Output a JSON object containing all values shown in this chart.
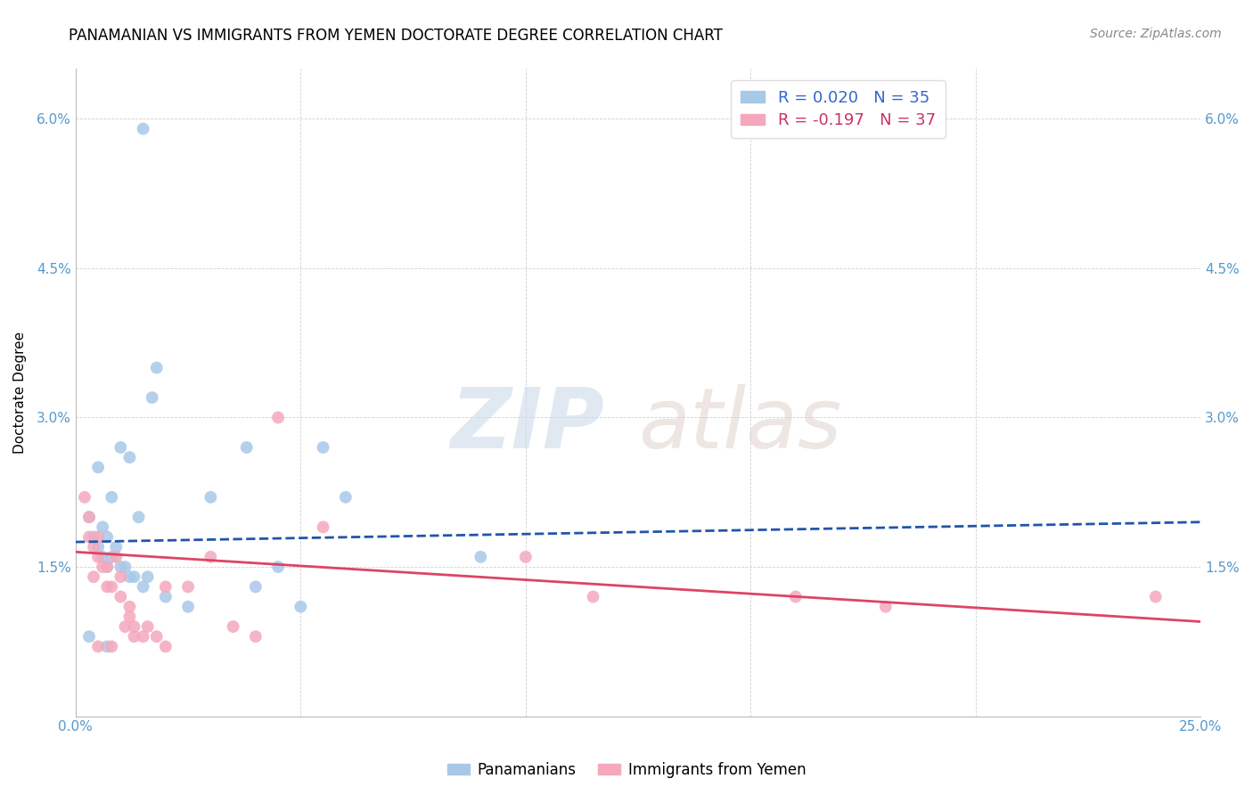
{
  "title": "PANAMANIAN VS IMMIGRANTS FROM YEMEN DOCTORATE DEGREE CORRELATION CHART",
  "source": "Source: ZipAtlas.com",
  "ylabel": "Doctorate Degree",
  "xmin": 0.0,
  "xmax": 0.25,
  "ymin": 0.0,
  "ymax": 0.065,
  "xticks": [
    0.0,
    0.05,
    0.1,
    0.15,
    0.2,
    0.25
  ],
  "yticks": [
    0.0,
    0.015,
    0.03,
    0.045,
    0.06
  ],
  "blue_color": "#a8c8e8",
  "pink_color": "#f5a8bc",
  "blue_line_color": "#2255aa",
  "pink_line_color": "#dd4466",
  "legend_r_blue": "R = 0.020",
  "legend_n_blue": "N = 35",
  "legend_r_pink": "R = -0.197",
  "legend_n_pink": "N = 37",
  "watermark_zip": "ZIP",
  "watermark_atlas": "atlas",
  "blue_scatter_x": [
    0.003,
    0.004,
    0.005,
    0.006,
    0.006,
    0.007,
    0.007,
    0.008,
    0.009,
    0.01,
    0.011,
    0.012,
    0.013,
    0.014,
    0.015,
    0.016,
    0.017,
    0.018,
    0.005,
    0.008,
    0.01,
    0.012,
    0.02,
    0.025,
    0.03,
    0.038,
    0.045,
    0.055,
    0.06,
    0.09,
    0.04,
    0.05,
    0.003,
    0.007,
    0.015
  ],
  "blue_scatter_y": [
    0.02,
    0.018,
    0.017,
    0.019,
    0.016,
    0.018,
    0.015,
    0.016,
    0.017,
    0.015,
    0.015,
    0.014,
    0.014,
    0.02,
    0.013,
    0.014,
    0.032,
    0.035,
    0.025,
    0.022,
    0.027,
    0.026,
    0.012,
    0.011,
    0.022,
    0.027,
    0.015,
    0.027,
    0.022,
    0.016,
    0.013,
    0.011,
    0.008,
    0.007,
    0.059
  ],
  "pink_scatter_x": [
    0.002,
    0.003,
    0.003,
    0.004,
    0.004,
    0.005,
    0.005,
    0.006,
    0.007,
    0.007,
    0.008,
    0.009,
    0.01,
    0.01,
    0.011,
    0.012,
    0.013,
    0.013,
    0.015,
    0.016,
    0.018,
    0.02,
    0.025,
    0.03,
    0.035,
    0.04,
    0.045,
    0.055,
    0.1,
    0.115,
    0.16,
    0.18,
    0.24,
    0.005,
    0.008,
    0.012,
    0.02
  ],
  "pink_scatter_y": [
    0.022,
    0.02,
    0.018,
    0.017,
    0.014,
    0.018,
    0.016,
    0.015,
    0.015,
    0.013,
    0.013,
    0.016,
    0.014,
    0.012,
    0.009,
    0.011,
    0.009,
    0.008,
    0.008,
    0.009,
    0.008,
    0.013,
    0.013,
    0.016,
    0.009,
    0.008,
    0.03,
    0.019,
    0.016,
    0.012,
    0.012,
    0.011,
    0.012,
    0.007,
    0.007,
    0.01,
    0.007
  ],
  "title_fontsize": 12,
  "axis_label_fontsize": 11,
  "tick_fontsize": 11,
  "legend_fontsize": 13,
  "source_fontsize": 10,
  "marker_size": 100,
  "blue_line_x": [
    0.0,
    0.25
  ],
  "blue_line_y": [
    0.0175,
    0.0195
  ],
  "pink_line_x": [
    0.0,
    0.25
  ],
  "pink_line_y": [
    0.0165,
    0.0095
  ]
}
